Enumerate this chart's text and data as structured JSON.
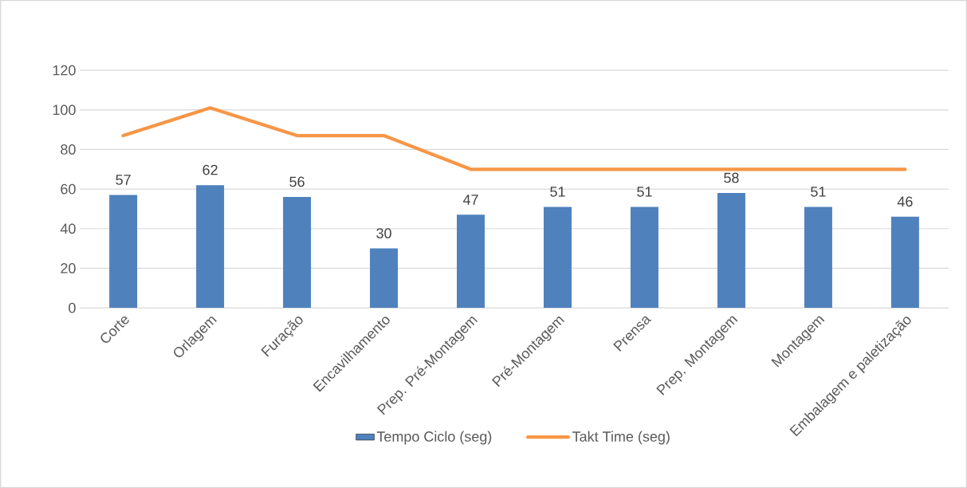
{
  "chart_data": {
    "type": "bar",
    "categories": [
      "Corte",
      "Orlagem",
      "Furação",
      "Encavilhamento",
      "Prep. Pré-Montagem",
      "Pré-Montagem",
      "Prensa",
      "Prep. Montagem",
      "Montagem",
      "Embalagem e paletização"
    ],
    "series": [
      {
        "name": "Tempo Ciclo (seg)",
        "color": "#4f81bd",
        "values": [
          57,
          62,
          56,
          30,
          47,
          51,
          51,
          58,
          51,
          46
        ],
        "value_labels": [
          "57",
          "62",
          "56",
          "30",
          "47",
          "51",
          "51",
          "58",
          "51",
          "46"
        ]
      },
      {
        "name": "Takt Time (seg)",
        "type": "line",
        "color": "#f79646",
        "values": [
          87,
          101,
          87,
          87,
          70,
          70,
          70,
          70,
          70,
          70
        ]
      }
    ],
    "ylim": [
      0,
      120
    ],
    "yticks": [
      0,
      20,
      40,
      60,
      80,
      100,
      120
    ],
    "grid": "y",
    "legend": "bottom",
    "marker": "none"
  }
}
